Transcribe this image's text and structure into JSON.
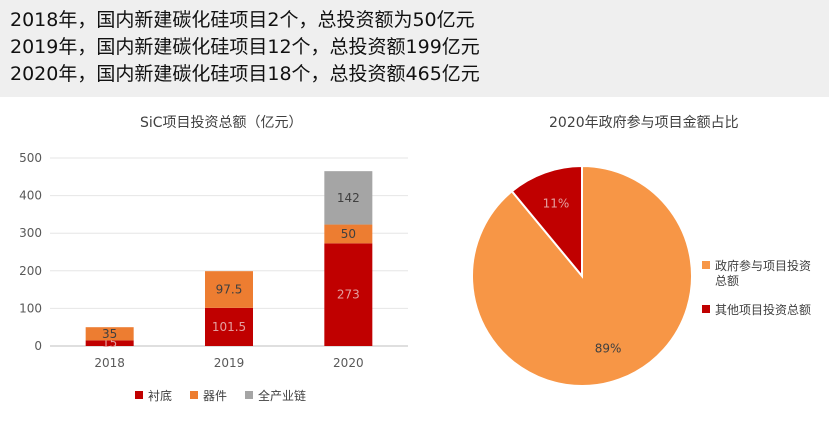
{
  "headlines": [
    "2018年，国内新建碳化硅项目2个，总投资额为50亿元",
    "2019年，国内新建碳化硅项目12个，总投资额199亿元",
    "2020年，国内新建碳化硅项目18个，总投资额465亿元"
  ],
  "chart_data": [
    {
      "type": "bar",
      "stacked": true,
      "title": "SiC项目投资总额（亿元）",
      "categories": [
        "2018",
        "2019",
        "2020"
      ],
      "series": [
        {
          "name": "衬底",
          "color": "#c00000",
          "values": [
            15,
            101.5,
            273
          ],
          "labels": [
            "15",
            "101.5",
            "273"
          ]
        },
        {
          "name": "器件",
          "color": "#ed7d31",
          "values": [
            35,
            97.5,
            50
          ],
          "labels": [
            "35",
            "97.5",
            "50"
          ]
        },
        {
          "name": "全产业链",
          "color": "#a5a5a5",
          "values": [
            0,
            0,
            142
          ],
          "labels": [
            "",
            "",
            "142"
          ]
        }
      ],
      "ylim": [
        0,
        500
      ],
      "yticks": [
        "0",
        "100",
        "200",
        "300",
        "400",
        "500"
      ],
      "legend_position": "bottom",
      "grid": true
    },
    {
      "type": "pie",
      "title": "2020年政府参与项目金额占比",
      "slices": [
        {
          "name": "政府参与项目投资总额",
          "value": 89,
          "label": "89%",
          "color": "#f79646"
        },
        {
          "name": "其他项目投资总额",
          "value": 11,
          "label": "11%",
          "color": "#c00000"
        }
      ],
      "legend_position": "right"
    }
  ]
}
